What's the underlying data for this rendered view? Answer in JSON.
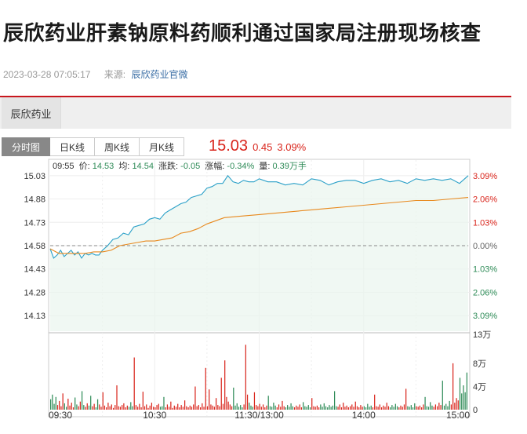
{
  "article": {
    "title": "辰欣药业肝素钠原料药顺利通过国家局注册现场核查",
    "datetime": "2023-03-28 07:05:17",
    "source_label": "来源:",
    "source_name": "辰欣药业官微"
  },
  "stock_tab": {
    "label": "辰欣药业"
  },
  "chart_tabs": [
    {
      "label": "分时图",
      "active": true
    },
    {
      "label": "日K线",
      "active": false
    },
    {
      "label": "周K线",
      "active": false
    },
    {
      "label": "月K线",
      "active": false
    }
  ],
  "quote": {
    "price": "15.03",
    "change": "0.45",
    "change_pct": "3.09%"
  },
  "info_bar": {
    "time": "09:55",
    "price_label": "价:",
    "price": "14.53",
    "avg_label": "均:",
    "avg": "14.54",
    "change_label": "涨跌:",
    "change": "-0.05",
    "pct_label": "涨幅:",
    "pct": "-0.34%",
    "vol_label": "量:",
    "vol": "0.39万手"
  },
  "colors": {
    "up": "#d9251c",
    "down": "#2e8b57",
    "price_line": "#2aa0c8",
    "avg_line": "#e8891e",
    "brand": "#c8161d"
  },
  "chart_data": {
    "type": "line",
    "title": "",
    "prev_close": 14.58,
    "y_ticks_left": [
      "15.03",
      "14.88",
      "14.73",
      "14.58",
      "14.43",
      "14.28",
      "14.13"
    ],
    "y_ticks_right": [
      "3.09%",
      "2.06%",
      "1.03%",
      "0.00%",
      "1.03%",
      "2.06%",
      "3.09%"
    ],
    "ylim": [
      14.03,
      15.13
    ],
    "x_ticks": [
      "09:30",
      "10:30",
      "11:30/13:00",
      "14:00",
      "15:00"
    ],
    "series": [
      {
        "key": "price",
        "x": [
          0,
          2,
          4,
          6,
          8,
          10,
          12,
          14,
          16,
          18,
          20,
          22,
          24,
          26,
          28,
          30,
          33,
          36,
          39,
          42,
          45,
          48,
          51,
          54,
          57,
          60,
          63,
          66,
          69,
          72,
          75,
          78,
          81,
          84,
          87,
          90,
          93,
          96,
          99,
          102,
          105,
          108,
          111,
          114,
          117,
          120,
          125,
          130,
          135,
          140,
          145,
          150,
          155,
          160,
          165,
          170,
          175,
          180,
          185,
          190,
          195,
          200,
          205,
          210,
          215,
          220,
          225,
          230,
          235,
          240
        ],
        "values": [
          14.56,
          14.5,
          14.52,
          14.55,
          14.51,
          14.53,
          14.55,
          14.52,
          14.54,
          14.5,
          14.53,
          14.52,
          14.53,
          14.52,
          14.52,
          14.55,
          14.58,
          14.62,
          14.63,
          14.66,
          14.65,
          14.7,
          14.71,
          14.72,
          14.75,
          14.76,
          14.75,
          14.79,
          14.81,
          14.83,
          14.85,
          14.86,
          14.89,
          14.9,
          14.91,
          14.95,
          14.96,
          14.98,
          14.98,
          15.03,
          14.99,
          14.98,
          15.0,
          14.99,
          14.99,
          15.01,
          14.99,
          14.99,
          14.97,
          14.98,
          14.97,
          15.01,
          15.0,
          14.97,
          14.99,
          15.0,
          15.0,
          14.98,
          15.0,
          15.01,
          14.99,
          15.0,
          14.98,
          15.01,
          15.0,
          15.01,
          15.0,
          15.01,
          14.98,
          15.03
        ]
      },
      {
        "key": "avg",
        "x": [
          0,
          5,
          10,
          15,
          20,
          25,
          30,
          35,
          40,
          45,
          50,
          55,
          60,
          65,
          70,
          75,
          80,
          85,
          90,
          95,
          100,
          110,
          120,
          130,
          140,
          150,
          160,
          170,
          180,
          190,
          200,
          210,
          220,
          230,
          240
        ],
        "values": [
          14.56,
          14.53,
          14.53,
          14.53,
          14.53,
          14.54,
          14.54,
          14.55,
          14.58,
          14.59,
          14.6,
          14.61,
          14.61,
          14.62,
          14.63,
          14.66,
          14.67,
          14.69,
          14.72,
          14.74,
          14.76,
          14.77,
          14.78,
          14.79,
          14.8,
          14.81,
          14.82,
          14.83,
          14.84,
          14.85,
          14.86,
          14.87,
          14.87,
          14.88,
          14.89
        ]
      }
    ],
    "volume_ticks": [
      "13万",
      "8万",
      "4万",
      "0"
    ],
    "volume_max": 13,
    "volume_unit": "万",
    "volume": [
      1.8,
      2.6,
      1.0,
      2.2,
      0.8,
      1.5,
      0.6,
      2.8,
      1.1,
      0.5,
      1.9,
      0.7,
      1.2,
      0.4,
      2.1,
      0.9,
      0.6,
      1.4,
      3.2,
      0.8,
      0.5,
      1.1,
      0.7,
      2.4,
      0.6,
      1.0,
      0.4,
      1.8,
      0.9,
      0.5,
      3.0,
      0.7,
      0.4,
      1.2,
      0.6,
      0.9,
      0.3,
      0.8,
      4.2,
      0.6,
      0.5,
      0.8,
      1.1,
      0.4,
      0.7,
      0.5,
      1.3,
      0.6,
      9.0,
      0.8,
      0.5,
      1.0,
      0.4,
      3.1,
      0.6,
      0.9,
      0.3,
      0.7,
      1.2,
      0.5,
      0.4,
      0.8,
      1.0,
      0.5,
      0.6,
      2.2,
      0.4,
      0.9,
      0.5,
      1.4,
      0.3,
      0.7,
      0.5,
      1.0,
      0.4,
      0.8,
      0.5,
      1.6,
      0.6,
      0.4,
      0.7,
      0.5,
      0.9,
      4.0,
      0.6,
      0.8,
      0.4,
      1.1,
      0.5,
      7.2,
      0.6,
      3.5,
      0.9,
      0.7,
      0.5,
      2.0,
      0.8,
      0.6,
      5.5,
      1.0,
      8.5,
      2.2,
      1.4,
      0.9,
      0.6,
      3.8,
      0.7,
      1.1,
      0.5,
      0.8,
      0.4,
      0.9,
      11.2,
      2.6,
      1.2,
      0.7,
      0.5,
      3.0,
      0.8,
      0.6,
      1.0,
      0.5,
      0.9,
      0.4,
      0.7,
      2.4,
      0.6,
      0.5,
      1.2,
      0.7,
      0.4,
      0.9,
      0.5,
      1.5,
      0.6,
      0.4,
      0.8,
      0.5,
      1.1,
      0.6,
      0.4,
      0.7,
      0.5,
      0.9,
      0.4,
      1.3,
      0.6,
      0.5,
      0.8,
      0.4,
      2.0,
      0.6,
      0.5,
      0.7,
      0.4,
      0.9,
      0.5,
      1.1,
      0.6,
      0.4,
      0.8,
      0.5,
      0.7,
      3.2,
      0.6,
      0.5,
      0.9,
      0.4,
      1.2,
      0.5,
      0.7,
      0.4,
      0.6,
      0.9,
      0.5,
      1.4,
      0.6,
      0.4,
      0.8,
      0.5,
      0.6,
      0.4,
      1.0,
      0.5,
      0.7,
      0.4,
      2.6,
      0.6,
      0.5,
      0.9,
      0.4,
      0.7,
      0.5,
      1.2,
      0.6,
      0.4,
      0.8,
      0.5,
      1.0,
      0.6,
      0.4,
      0.7,
      0.5,
      0.9,
      3.6,
      0.6,
      0.5,
      0.8,
      0.4,
      1.1,
      0.6,
      0.5,
      0.7,
      0.4,
      0.9,
      2.2,
      0.6,
      0.5,
      1.3,
      0.7,
      0.5,
      0.9,
      0.6,
      1.2,
      0.8,
      5.0,
      0.7,
      1.0,
      0.6,
      1.5,
      0.9,
      8.0,
      1.2,
      2.0,
      1.6,
      5.5,
      2.8,
      4.2,
      3.0,
      6.4
    ]
  }
}
